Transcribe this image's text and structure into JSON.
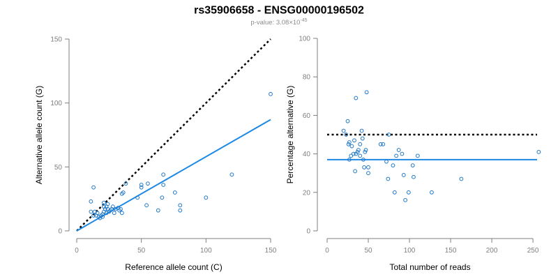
{
  "figure": {
    "title": "rs35906658 - ENSG00000196502",
    "subtitle_prefix": "p-value: 3.08×10",
    "subtitle_exponent": "-45"
  },
  "chart_data": [
    {
      "type": "scatter",
      "xlabel": "Reference allele count (C)",
      "ylabel": "Alternative allele count (G)",
      "xlim": [
        0,
        150
      ],
      "ylim": [
        0,
        150
      ],
      "xticks": [
        0,
        50,
        100,
        150
      ],
      "yticks": [
        0,
        50,
        100,
        150
      ],
      "grid": false,
      "points": [
        [
          11,
          23
        ],
        [
          13,
          34
        ],
        [
          11,
          15
        ],
        [
          14,
          15
        ],
        [
          13,
          12
        ],
        [
          15,
          12
        ],
        [
          16,
          14
        ],
        [
          17,
          11
        ],
        [
          18,
          10
        ],
        [
          19,
          12
        ],
        [
          20,
          11
        ],
        [
          20,
          13
        ],
        [
          21,
          15
        ],
        [
          21,
          19
        ],
        [
          22,
          17
        ],
        [
          21,
          22
        ],
        [
          23,
          14
        ],
        [
          23,
          19
        ],
        [
          24,
          17
        ],
        [
          24,
          21
        ],
        [
          25,
          15
        ],
        [
          26,
          16
        ],
        [
          27,
          17
        ],
        [
          28,
          19
        ],
        [
          29,
          14
        ],
        [
          30,
          17
        ],
        [
          32,
          18
        ],
        [
          33,
          16
        ],
        [
          34,
          17
        ],
        [
          35,
          14
        ],
        [
          35,
          29
        ],
        [
          36,
          30
        ],
        [
          38,
          37
        ],
        [
          47,
          26
        ],
        [
          50,
          34
        ],
        [
          50,
          36
        ],
        [
          54,
          20
        ],
        [
          55,
          37
        ],
        [
          63,
          16
        ],
        [
          66,
          26
        ],
        [
          67,
          44
        ],
        [
          67,
          36
        ],
        [
          76,
          30
        ],
        [
          80,
          20
        ],
        [
          80,
          16
        ],
        [
          100,
          26
        ],
        [
          120,
          44
        ],
        [
          150,
          107
        ]
      ],
      "reference_line": {
        "x": [
          0,
          150
        ],
        "y": [
          0,
          150
        ]
      },
      "fit_line": {
        "x": [
          0,
          150
        ],
        "y": [
          0,
          87
        ]
      }
    },
    {
      "type": "scatter",
      "xlabel": "Total number of reads",
      "ylabel": "Percentage alternative (G)",
      "xlim": [
        0,
        255
      ],
      "ylim": [
        0,
        100
      ],
      "xticks": [
        0,
        50,
        100,
        150,
        200,
        250
      ],
      "yticks": [
        0,
        20,
        40,
        60,
        80,
        100
      ],
      "grid": false,
      "points": [
        [
          20,
          52
        ],
        [
          23,
          50
        ],
        [
          25,
          57
        ],
        [
          26,
          45
        ],
        [
          27,
          37
        ],
        [
          27,
          46
        ],
        [
          29,
          39
        ],
        [
          30,
          44
        ],
        [
          32,
          40
        ],
        [
          33,
          47
        ],
        [
          34,
          31
        ],
        [
          35,
          40
        ],
        [
          35,
          69
        ],
        [
          37,
          41
        ],
        [
          38,
          42
        ],
        [
          40,
          45
        ],
        [
          40,
          39
        ],
        [
          42,
          52
        ],
        [
          43,
          48
        ],
        [
          44,
          37
        ],
        [
          45,
          33
        ],
        [
          46,
          41
        ],
        [
          47,
          42
        ],
        [
          48,
          72
        ],
        [
          50,
          33
        ],
        [
          50,
          30
        ],
        [
          65,
          45
        ],
        [
          68,
          45
        ],
        [
          72,
          36
        ],
        [
          74,
          27
        ],
        [
          75,
          50
        ],
        [
          80,
          34
        ],
        [
          82,
          20
        ],
        [
          84,
          39
        ],
        [
          87,
          42
        ],
        [
          91,
          40
        ],
        [
          93,
          29
        ],
        [
          95,
          16
        ],
        [
          99,
          20
        ],
        [
          104,
          34
        ],
        [
          105,
          28
        ],
        [
          110,
          39
        ],
        [
          127,
          20
        ],
        [
          163,
          27
        ],
        [
          257,
          41
        ]
      ],
      "reference_line": {
        "x": [
          0,
          255
        ],
        "y": [
          50,
          50
        ]
      },
      "fit_line": {
        "x": [
          0,
          255
        ],
        "y": [
          37,
          37
        ]
      }
    }
  ]
}
